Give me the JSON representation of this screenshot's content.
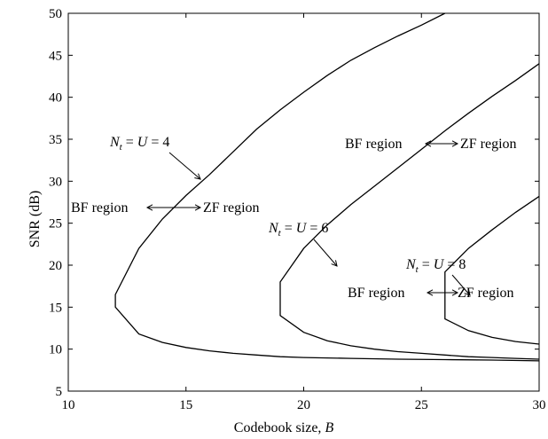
{
  "chart_data": {
    "type": "line",
    "title": "",
    "xlabel": "Codebook size, ",
    "xlabel_var": "B",
    "ylabel": "SNR (dB)",
    "xlim": [
      10,
      30
    ],
    "ylim": [
      5,
      50
    ],
    "xticks": [
      10,
      15,
      20,
      25,
      30
    ],
    "yticks": [
      5,
      10,
      15,
      20,
      25,
      30,
      35,
      40,
      45,
      50
    ],
    "grid": false,
    "series": [
      {
        "id": "nt4",
        "upper": [
          [
            12,
            16.5
          ],
          [
            13,
            22
          ],
          [
            14,
            25.5
          ],
          [
            15,
            28.3
          ],
          [
            16,
            30.8
          ],
          [
            17,
            33.5
          ],
          [
            18,
            36.2
          ],
          [
            19,
            38.5
          ],
          [
            20,
            40.6
          ],
          [
            21,
            42.6
          ],
          [
            22,
            44.4
          ],
          [
            23,
            45.9
          ],
          [
            24,
            47.3
          ],
          [
            25,
            48.6
          ],
          [
            26,
            50
          ]
        ],
        "lower": [
          [
            12,
            15
          ],
          [
            13,
            11.8
          ],
          [
            14,
            10.8
          ],
          [
            15,
            10.2
          ],
          [
            16,
            9.8
          ],
          [
            17,
            9.5
          ],
          [
            18,
            9.3
          ],
          [
            19,
            9.1
          ],
          [
            20,
            9.0
          ],
          [
            22,
            8.9
          ],
          [
            24,
            8.8
          ],
          [
            26,
            8.75
          ],
          [
            28,
            8.7
          ],
          [
            30,
            8.6
          ]
        ]
      },
      {
        "id": "nt6",
        "upper": [
          [
            19,
            18
          ],
          [
            20,
            22
          ],
          [
            21,
            24.8
          ],
          [
            22,
            27.2
          ],
          [
            23,
            29.4
          ],
          [
            24,
            31.6
          ],
          [
            25,
            33.8
          ],
          [
            26,
            36
          ],
          [
            27,
            38.1
          ],
          [
            28,
            40.1
          ],
          [
            29,
            42
          ],
          [
            30,
            44
          ]
        ],
        "lower": [
          [
            19,
            14
          ],
          [
            20,
            12
          ],
          [
            21,
            11
          ],
          [
            22,
            10.4
          ],
          [
            23,
            10
          ],
          [
            24,
            9.7
          ],
          [
            25,
            9.5
          ],
          [
            26,
            9.3
          ],
          [
            27,
            9.1
          ],
          [
            28,
            9
          ],
          [
            29,
            8.9
          ],
          [
            30,
            8.8
          ]
        ]
      },
      {
        "id": "nt8",
        "upper": [
          [
            26,
            19.2
          ],
          [
            27,
            22
          ],
          [
            28,
            24.2
          ],
          [
            29,
            26.3
          ],
          [
            30,
            28.2
          ]
        ],
        "lower": [
          [
            26,
            13.6
          ],
          [
            27,
            12.2
          ],
          [
            28,
            11.4
          ],
          [
            29,
            10.9
          ],
          [
            30,
            10.6
          ]
        ]
      }
    ],
    "annotations": [
      {
        "id": "label-nt4",
        "text_a": "N",
        "sub": "t",
        "text_b": " = ",
        "text_c": "U",
        "text_d": " = 4"
      },
      {
        "id": "label-nt6",
        "text_a": "N",
        "sub": "t",
        "text_b": " = ",
        "text_c": "U",
        "text_d": " = 6"
      },
      {
        "id": "label-nt8",
        "text_a": "N",
        "sub": "t",
        "text_b": " = ",
        "text_c": "U",
        "text_d": " = 8"
      }
    ],
    "region_labels": {
      "bf": "BF region",
      "zf": "ZF region"
    }
  }
}
